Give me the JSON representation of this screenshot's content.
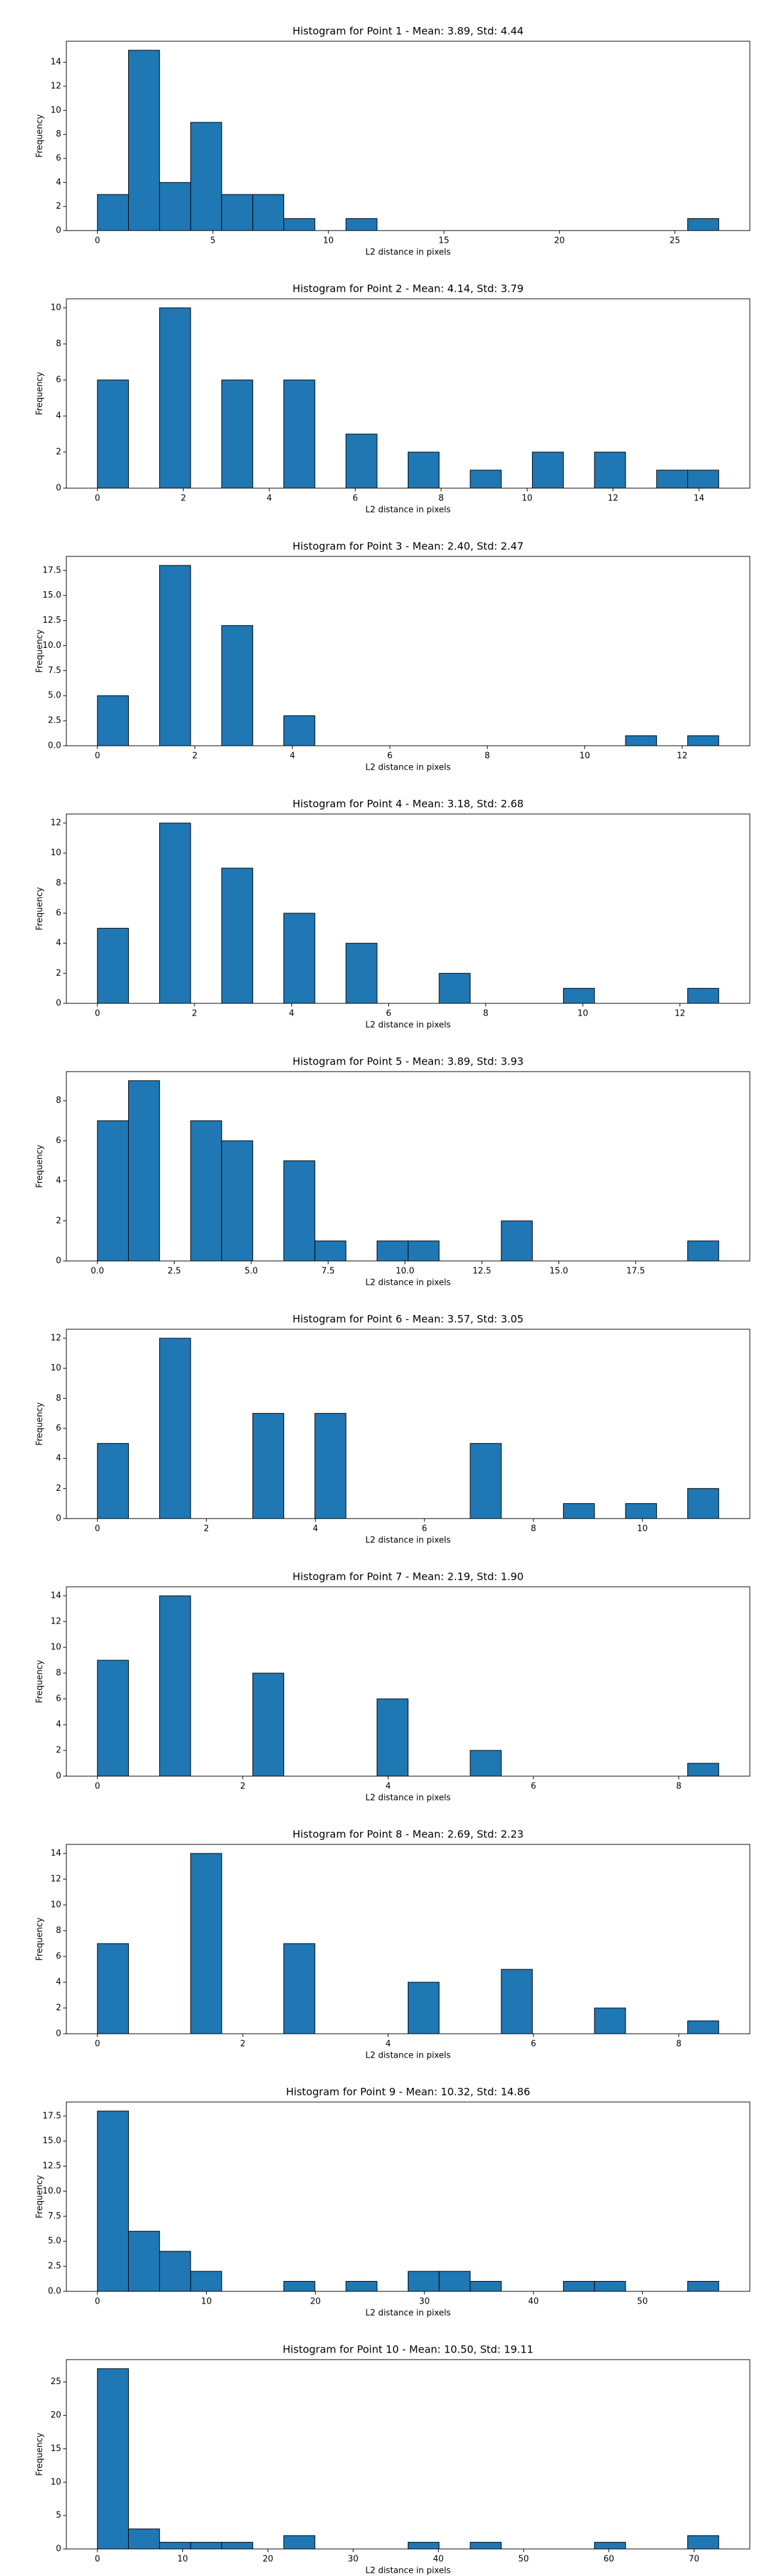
{
  "chart_data": [
    {
      "type": "histogram",
      "title": "Histogram for Point 1 - Mean: 3.89, Std: 4.44",
      "xlabel": "L2 distance in pixels",
      "ylabel": "Frequency",
      "color": "#1f77b4",
      "bins": [
        0,
        1.345,
        2.69,
        4.035,
        5.38,
        6.725,
        8.07,
        9.415,
        10.76,
        12.105,
        13.45,
        14.795,
        16.14,
        17.485,
        18.83,
        20.175,
        21.52,
        22.865,
        24.21,
        25.555,
        26.9
      ],
      "values": [
        3,
        15,
        4,
        9,
        3,
        3,
        1,
        0,
        1,
        0,
        0,
        0,
        0,
        0,
        0,
        0,
        0,
        0,
        0,
        1
      ],
      "xlim": [
        -1.345,
        28.245
      ],
      "ylim": [
        0,
        15.75
      ],
      "xticks": [
        0,
        5,
        10,
        15,
        20,
        25
      ],
      "yticks": [
        0,
        2,
        4,
        6,
        8,
        10,
        12,
        14
      ]
    },
    {
      "type": "histogram",
      "title": "Histogram for Point 2 - Mean: 4.14, Std: 3.79",
      "xlabel": "L2 distance in pixels",
      "ylabel": "Frequency",
      "color": "#1f77b4",
      "bins": [
        0,
        0.723,
        1.446,
        2.169,
        2.892,
        3.615,
        4.338,
        5.061,
        5.784,
        6.507,
        7.23,
        7.953,
        8.676,
        9.399,
        10.122,
        10.845,
        11.568,
        12.291,
        13.014,
        13.737,
        14.46
      ],
      "values": [
        6,
        0,
        10,
        0,
        6,
        0,
        6,
        0,
        3,
        0,
        2,
        0,
        1,
        0,
        2,
        0,
        2,
        0,
        1,
        1
      ],
      "xlim": [
        -0.723,
        15.183
      ],
      "ylim": [
        0,
        10.5
      ],
      "xticks": [
        0,
        2,
        4,
        6,
        8,
        10,
        12,
        14
      ],
      "yticks": [
        0,
        2,
        4,
        6,
        8,
        10
      ]
    },
    {
      "type": "histogram",
      "title": "Histogram for Point 3 - Mean: 2.40, Std: 2.47",
      "xlabel": "L2 distance in pixels",
      "ylabel": "Frequency",
      "color": "#1f77b4",
      "bins": [
        0,
        0.6375,
        1.275,
        1.9125,
        2.55,
        3.1875,
        3.825,
        4.4625,
        5.1,
        5.7375,
        6.375,
        7.0125,
        7.65,
        8.2875,
        8.925,
        9.5625,
        10.2,
        10.8375,
        11.475,
        12.1125,
        12.75
      ],
      "values": [
        5,
        0,
        18,
        0,
        12,
        0,
        3,
        0,
        0,
        0,
        0,
        0,
        0,
        0,
        0,
        0,
        0,
        1,
        0,
        1
      ],
      "xlim": [
        -0.6375,
        13.3875
      ],
      "ylim": [
        0,
        18.9
      ],
      "xticks": [
        0,
        2,
        4,
        6,
        8,
        10,
        12
      ],
      "yticks": [
        {
          "value": 0,
          "label": "0.0"
        },
        {
          "value": 2.5,
          "label": "2.5"
        },
        {
          "value": 5,
          "label": "5.0"
        },
        {
          "value": 7.5,
          "label": "7.5"
        },
        {
          "value": 10,
          "label": "10.0"
        },
        {
          "value": 12.5,
          "label": "12.5"
        },
        {
          "value": 15,
          "label": "15.0"
        },
        {
          "value": 17.5,
          "label": "17.5"
        }
      ]
    },
    {
      "type": "histogram",
      "title": "Histogram for Point 4 - Mean: 3.18, Std: 2.68",
      "xlabel": "L2 distance in pixels",
      "ylabel": "Frequency",
      "color": "#1f77b4",
      "bins": [
        0,
        0.64,
        1.28,
        1.92,
        2.56,
        3.2,
        3.84,
        4.48,
        5.12,
        5.76,
        6.4,
        7.04,
        7.68,
        8.32,
        8.96,
        9.6,
        10.24,
        10.88,
        11.52,
        12.16,
        12.8
      ],
      "values": [
        5,
        0,
        12,
        0,
        9,
        0,
        6,
        0,
        4,
        0,
        0,
        2,
        0,
        0,
        0,
        1,
        0,
        0,
        0,
        1
      ],
      "xlim": [
        -0.64,
        13.44
      ],
      "ylim": [
        0,
        12.6
      ],
      "xticks": [
        0,
        2,
        4,
        6,
        8,
        10,
        12
      ],
      "yticks": [
        0,
        2,
        4,
        6,
        8,
        10,
        12
      ]
    },
    {
      "type": "histogram",
      "title": "Histogram for Point 5 - Mean: 3.89, Std: 3.93",
      "xlabel": "L2 distance in pixels",
      "ylabel": "Frequency",
      "color": "#1f77b4",
      "bins": [
        0,
        1.01,
        2.02,
        3.03,
        4.04,
        5.05,
        6.06,
        7.07,
        8.08,
        9.09,
        10.1,
        11.11,
        12.12,
        13.13,
        14.14,
        15.15,
        16.16,
        17.17,
        18.18,
        19.19,
        20.2
      ],
      "values": [
        7,
        9,
        0,
        7,
        6,
        0,
        5,
        1,
        0,
        1,
        1,
        0,
        0,
        2,
        0,
        0,
        0,
        0,
        0,
        1
      ],
      "xlim": [
        -1.01,
        21.21
      ],
      "ylim": [
        0,
        9.45
      ],
      "xticks": [
        {
          "value": 0,
          "label": "0.0"
        },
        {
          "value": 2.5,
          "label": "2.5"
        },
        {
          "value": 5,
          "label": "5.0"
        },
        {
          "value": 7.5,
          "label": "7.5"
        },
        {
          "value": 10,
          "label": "10.0"
        },
        {
          "value": 12.5,
          "label": "12.5"
        },
        {
          "value": 15,
          "label": "15.0"
        },
        {
          "value": 17.5,
          "label": "17.5"
        }
      ],
      "yticks": [
        0,
        2,
        4,
        6,
        8
      ]
    },
    {
      "type": "histogram",
      "title": "Histogram for Point 6 - Mean: 3.57, Std: 3.05",
      "xlabel": "L2 distance in pixels",
      "ylabel": "Frequency",
      "color": "#1f77b4",
      "bins": [
        0,
        0.57,
        1.14,
        1.71,
        2.28,
        2.85,
        3.42,
        3.99,
        4.56,
        5.13,
        5.7,
        6.27,
        6.84,
        7.41,
        7.98,
        8.55,
        9.12,
        9.69,
        10.26,
        10.83,
        11.4
      ],
      "values": [
        5,
        0,
        12,
        0,
        0,
        7,
        0,
        7,
        0,
        0,
        0,
        0,
        5,
        0,
        0,
        1,
        0,
        1,
        0,
        2
      ],
      "xlim": [
        -0.57,
        11.97
      ],
      "ylim": [
        0,
        12.6
      ],
      "xticks": [
        0,
        2,
        4,
        6,
        8,
        10
      ],
      "yticks": [
        0,
        2,
        4,
        6,
        8,
        10,
        12
      ]
    },
    {
      "type": "histogram",
      "title": "Histogram for Point 7 - Mean: 2.19, Std: 1.90",
      "xlabel": "L2 distance in pixels",
      "ylabel": "Frequency",
      "color": "#1f77b4",
      "bins": [
        0,
        0.4275,
        0.855,
        1.2825,
        1.71,
        2.1375,
        2.565,
        2.9925,
        3.42,
        3.8475,
        4.275,
        4.7025,
        5.13,
        5.5575,
        5.985,
        6.4125,
        6.84,
        7.2675,
        7.695,
        8.1225,
        8.55
      ],
      "values": [
        9,
        0,
        14,
        0,
        0,
        8,
        0,
        0,
        0,
        6,
        0,
        0,
        2,
        0,
        0,
        0,
        0,
        0,
        0,
        1
      ],
      "xlim": [
        -0.4275,
        8.9775
      ],
      "ylim": [
        0,
        14.7
      ],
      "xticks": [
        0,
        2,
        4,
        6,
        8
      ],
      "yticks": [
        0,
        2,
        4,
        6,
        8,
        10,
        12,
        14
      ]
    },
    {
      "type": "histogram",
      "title": "Histogram for Point 8 - Mean: 2.69, Std: 2.23",
      "xlabel": "L2 distance in pixels",
      "ylabel": "Frequency",
      "color": "#1f77b4",
      "bins": [
        0,
        0.4275,
        0.855,
        1.2825,
        1.71,
        2.1375,
        2.565,
        2.9925,
        3.42,
        3.8475,
        4.275,
        4.7025,
        5.13,
        5.5575,
        5.985,
        6.4125,
        6.84,
        7.2675,
        7.695,
        8.1225,
        8.55
      ],
      "values": [
        7,
        0,
        0,
        14,
        0,
        0,
        7,
        0,
        0,
        0,
        4,
        0,
        0,
        5,
        0,
        0,
        2,
        0,
        0,
        1
      ],
      "xlim": [
        -0.4275,
        8.9775
      ],
      "ylim": [
        0,
        14.7
      ],
      "xticks": [
        0,
        2,
        4,
        6,
        8
      ],
      "yticks": [
        0,
        2,
        4,
        6,
        8,
        10,
        12,
        14
      ]
    },
    {
      "type": "histogram",
      "title": "Histogram for Point 9 - Mean: 10.32, Std: 14.86",
      "xlabel": "L2 distance in pixels",
      "ylabel": "Frequency",
      "color": "#1f77b4",
      "bins": [
        0,
        2.85,
        5.7,
        8.55,
        11.4,
        14.25,
        17.1,
        19.95,
        22.8,
        25.65,
        28.5,
        31.35,
        34.2,
        37.05,
        39.9,
        42.75,
        45.6,
        48.45,
        51.3,
        54.15,
        57
      ],
      "values": [
        18,
        6,
        4,
        2,
        0,
        0,
        1,
        0,
        1,
        0,
        2,
        2,
        1,
        0,
        0,
        1,
        1,
        0,
        0,
        1
      ],
      "xlim": [
        -2.85,
        59.85
      ],
      "ylim": [
        0,
        18.9
      ],
      "xticks": [
        0,
        10,
        20,
        30,
        40,
        50
      ],
      "yticks": [
        {
          "value": 0,
          "label": "0.0"
        },
        {
          "value": 2.5,
          "label": "2.5"
        },
        {
          "value": 5,
          "label": "5.0"
        },
        {
          "value": 7.5,
          "label": "7.5"
        },
        {
          "value": 10,
          "label": "10.0"
        },
        {
          "value": 12.5,
          "label": "12.5"
        },
        {
          "value": 15,
          "label": "15.0"
        },
        {
          "value": 17.5,
          "label": "17.5"
        }
      ]
    },
    {
      "type": "histogram",
      "title": "Histogram for Point 10 - Mean: 10.50, Std: 19.11",
      "xlabel": "L2 distance in pixels",
      "ylabel": "Frequency",
      "color": "#1f77b4",
      "bins": [
        0,
        3.645,
        7.29,
        10.935,
        14.58,
        18.225,
        21.87,
        25.515,
        29.16,
        32.805,
        36.45,
        40.095,
        43.74,
        47.385,
        51.03,
        54.675,
        58.32,
        61.965,
        65.61,
        69.255,
        72.9
      ],
      "values": [
        27,
        3,
        1,
        1,
        1,
        0,
        2,
        0,
        0,
        0,
        1,
        0,
        1,
        0,
        0,
        0,
        1,
        0,
        0,
        2
      ],
      "xlim": [
        -3.645,
        76.545
      ],
      "ylim": [
        0,
        28.35
      ],
      "xticks": [
        0,
        10,
        20,
        30,
        40,
        50,
        60,
        70
      ],
      "yticks": [
        0,
        5,
        10,
        15,
        20,
        25
      ]
    }
  ]
}
